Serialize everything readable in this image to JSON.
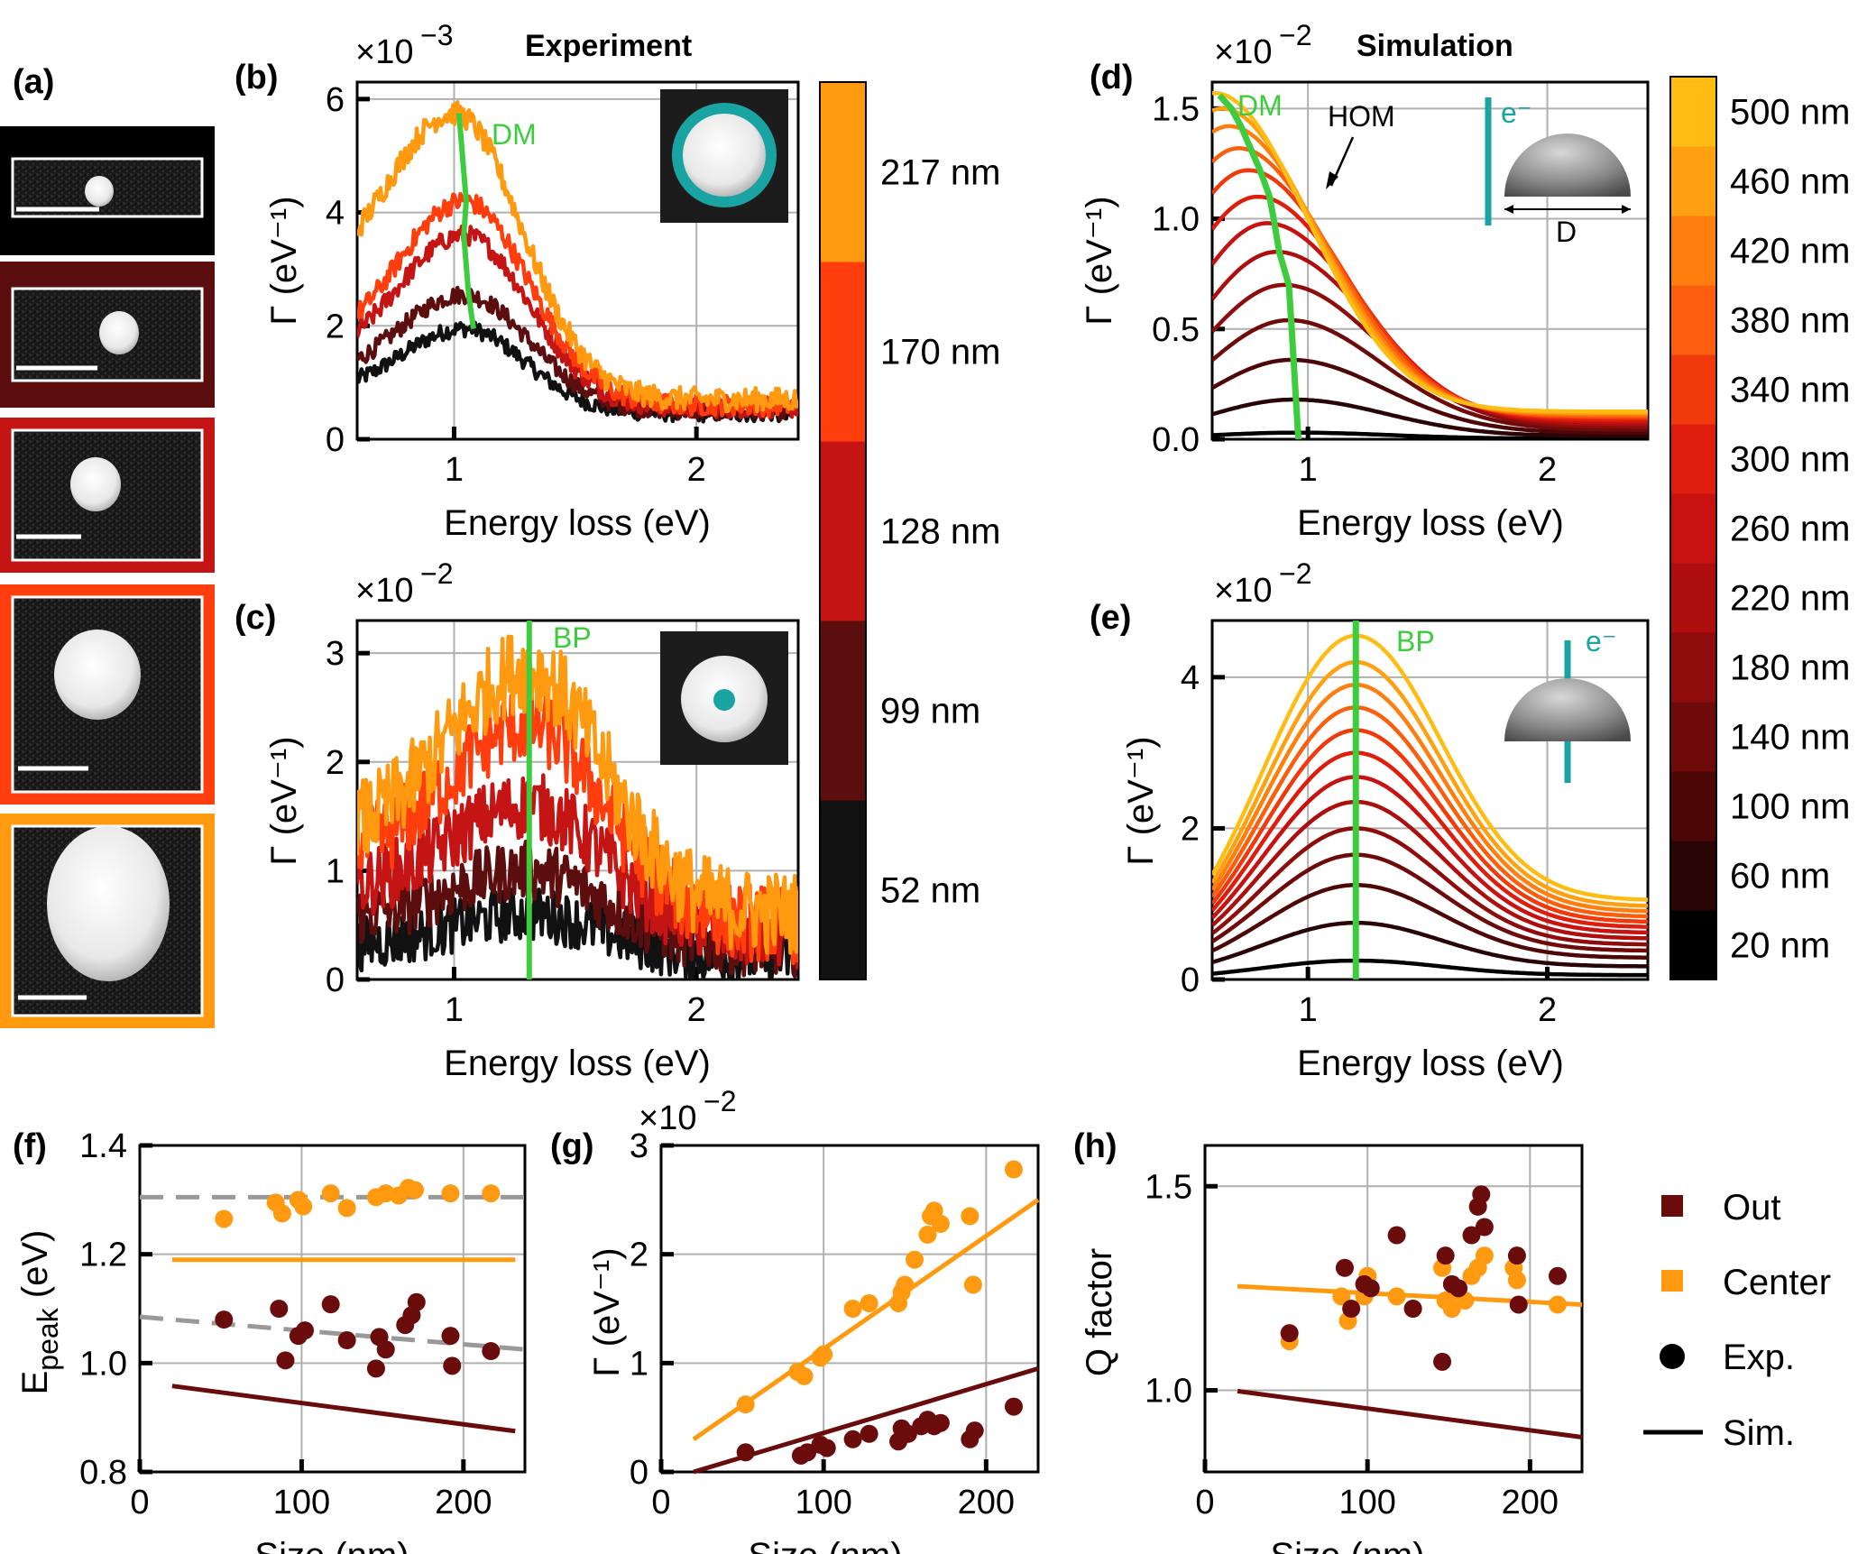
{
  "titles": {
    "experiment": "Experiment",
    "simulation": "Simulation"
  },
  "panel_labels": {
    "a": "(a)",
    "b": "(b)",
    "c": "(c)",
    "d": "(d)",
    "e": "(e)",
    "f": "(f)",
    "g": "(g)",
    "h": "(h)"
  },
  "labels": {
    "energy_loss": "Energy loss (eV)",
    "gamma": "Γ (eV⁻¹)",
    "size": "Size (nm)",
    "epeak": "E",
    "epeak_sub": "peak",
    "epeak_unit": " (eV)",
    "qfactor": "Q factor"
  },
  "annotations": {
    "dm": "DM",
    "bp": "BP",
    "hom": "HOM",
    "eminus": "e⁻",
    "diameter": "D"
  },
  "colorbars": {
    "experiment": [
      "52 nm",
      "99 nm",
      "128 nm",
      "170 nm",
      "217 nm"
    ],
    "simulation": [
      "20 nm",
      "60 nm",
      "100 nm",
      "140 nm",
      "180 nm",
      "220 nm",
      "260 nm",
      "300 nm",
      "340 nm",
      "380 nm",
      "420 nm",
      "460 nm",
      "500 nm"
    ]
  },
  "legend": {
    "out": "Out",
    "center": "Center",
    "exp": "Exp.",
    "sim": "Sim."
  },
  "colors": {
    "out": "#6b0c0c",
    "center": "#ff9a10",
    "green": "#3dcc3d",
    "teal": "#1aa3a3",
    "grid": "#b0b0b0",
    "exp_scale": [
      "#111111",
      "#5c0d0d",
      "#c41414",
      "#ff3d0d",
      "#ff9a10"
    ],
    "sim_scale": [
      "#000000",
      "#2a0505",
      "#4e0707",
      "#6e0a0a",
      "#8e0c0c",
      "#ad0e0e",
      "#c81111",
      "#df1d0d",
      "#f03a0c",
      "#fb5e0d",
      "#ff7e0e",
      "#ffa010",
      "#ffbd14"
    ]
  },
  "chart_data": [
    {
      "panel": "b",
      "type": "line",
      "title": "Experiment",
      "xlabel": "Energy loss (eV)",
      "ylabel": "Γ (eV⁻¹)",
      "y_multiplier": "×10⁻³",
      "xlim": [
        0.6,
        2.42
      ],
      "ylim": [
        0,
        6.3
      ],
      "xticks": [
        1,
        2
      ],
      "yticks": [
        0,
        2,
        4,
        6
      ],
      "series": [
        {
          "name": "52 nm",
          "peak_x": 1.04,
          "peak_y": 1.95,
          "base": 0.8,
          "tail": 0.45,
          "width": 0.36
        },
        {
          "name": "99 nm",
          "peak_x": 1.04,
          "peak_y": 2.55,
          "base": 1.0,
          "tail": 0.5,
          "width": 0.38
        },
        {
          "name": "128 nm",
          "peak_x": 1.04,
          "peak_y": 3.6,
          "base": 1.3,
          "tail": 0.55,
          "width": 0.38
        },
        {
          "name": "170 nm",
          "peak_x": 1.04,
          "peak_y": 4.2,
          "base": 1.5,
          "tail": 0.6,
          "width": 0.38
        },
        {
          "name": "217 nm",
          "peak_x": 1.0,
          "peak_y": 5.75,
          "base": 2.6,
          "tail": 0.7,
          "width": 0.39
        }
      ],
      "dm_trace": {
        "x": [
          1.02,
          1.05,
          1.04,
          1.06,
          1.08
        ],
        "y": [
          5.75,
          4.2,
          3.6,
          2.55,
          1.95
        ]
      }
    },
    {
      "panel": "c",
      "type": "line",
      "xlabel": "Energy loss (eV)",
      "ylabel": "Γ (eV⁻¹)",
      "y_multiplier": "×10⁻²",
      "xlim": [
        0.6,
        2.42
      ],
      "ylim": [
        0,
        3.3
      ],
      "xticks": [
        1,
        2
      ],
      "yticks": [
        0,
        1,
        2,
        3
      ],
      "series": [
        {
          "name": "52 nm",
          "peak_x": 1.3,
          "peak_y": 0.6,
          "base": 0.3,
          "tail": 0.2,
          "width": 0.45
        },
        {
          "name": "99 nm",
          "peak_x": 1.3,
          "peak_y": 1.0,
          "base": 0.55,
          "tail": 0.3,
          "width": 0.45
        },
        {
          "name": "128 nm",
          "peak_x": 1.3,
          "peak_y": 1.6,
          "base": 0.8,
          "tail": 0.4,
          "width": 0.45
        },
        {
          "name": "170 nm",
          "peak_x": 1.3,
          "peak_y": 2.35,
          "base": 1.1,
          "tail": 0.5,
          "width": 0.45
        },
        {
          "name": "217 nm",
          "peak_x": 1.3,
          "peak_y": 2.85,
          "base": 1.3,
          "tail": 0.6,
          "width": 0.45
        }
      ],
      "bp_line_x": 1.31
    },
    {
      "panel": "d",
      "type": "line",
      "title": "Simulation",
      "xlabel": "Energy loss (eV)",
      "ylabel": "Γ (eV⁻¹)",
      "y_multiplier": "×10⁻²",
      "xlim": [
        0.6,
        2.42
      ],
      "ylim": [
        0,
        1.62
      ],
      "xticks": [
        1,
        2
      ],
      "yticks": [
        0.0,
        0.5,
        1.0,
        1.5
      ],
      "series": [
        {
          "name": "20 nm",
          "peak_x": 0.95,
          "peak_y": 0.03
        },
        {
          "name": "60 nm",
          "peak_x": 0.94,
          "peak_y": 0.18
        },
        {
          "name": "100 nm",
          "peak_x": 0.93,
          "peak_y": 0.36
        },
        {
          "name": "140 nm",
          "peak_x": 0.92,
          "peak_y": 0.54
        },
        {
          "name": "180 nm",
          "peak_x": 0.9,
          "peak_y": 0.7
        },
        {
          "name": "220 nm",
          "peak_x": 0.87,
          "peak_y": 0.85
        },
        {
          "name": "260 nm",
          "peak_x": 0.83,
          "peak_y": 0.98
        },
        {
          "name": "300 nm",
          "peak_x": 0.79,
          "peak_y": 1.1
        },
        {
          "name": "340 nm",
          "peak_x": 0.75,
          "peak_y": 1.22
        },
        {
          "name": "380 nm",
          "peak_x": 0.71,
          "peak_y": 1.32
        },
        {
          "name": "420 nm",
          "peak_x": 0.67,
          "peak_y": 1.42
        },
        {
          "name": "460 nm",
          "peak_x": 0.64,
          "peak_y": 1.5
        },
        {
          "name": "500 nm",
          "peak_x": 0.61,
          "peak_y": 1.57
        }
      ],
      "dm_trace": {
        "x": [
          0.96,
          0.95,
          0.94,
          0.93,
          0.92,
          0.88,
          0.86,
          0.84,
          0.8,
          0.76,
          0.72,
          0.68,
          0.63
        ],
        "y": [
          0.0,
          0.18,
          0.36,
          0.54,
          0.7,
          0.85,
          0.98,
          1.1,
          1.22,
          1.32,
          1.42,
          1.5,
          1.56
        ]
      }
    },
    {
      "panel": "e",
      "type": "line",
      "xlabel": "Energy loss (eV)",
      "ylabel": "Γ (eV⁻¹)",
      "y_multiplier": "×10⁻²",
      "xlim": [
        0.6,
        2.42
      ],
      "ylim": [
        0,
        4.75
      ],
      "xticks": [
        1,
        2
      ],
      "yticks": [
        0,
        2,
        4
      ],
      "series": [
        {
          "name": "20 nm",
          "peak_y": 0.25
        },
        {
          "name": "60 nm",
          "peak_y": 0.75
        },
        {
          "name": "100 nm",
          "peak_y": 1.25
        },
        {
          "name": "140 nm",
          "peak_y": 1.65
        },
        {
          "name": "180 nm",
          "peak_y": 2.0
        },
        {
          "name": "220 nm",
          "peak_y": 2.35
        },
        {
          "name": "260 nm",
          "peak_y": 2.68
        },
        {
          "name": "300 nm",
          "peak_y": 3.0
        },
        {
          "name": "340 nm",
          "peak_y": 3.3
        },
        {
          "name": "380 nm",
          "peak_y": 3.6
        },
        {
          "name": "420 nm",
          "peak_y": 3.9
        },
        {
          "name": "460 nm",
          "peak_y": 4.2
        },
        {
          "name": "500 nm",
          "peak_y": 4.55
        }
      ],
      "peak_x": 1.2,
      "bp_line_x": 1.2
    },
    {
      "panel": "f",
      "type": "scatter",
      "xlabel": "Size (nm)",
      "ylabel": "E_peak (eV)",
      "xlim": [
        0,
        238
      ],
      "ylim": [
        0.8,
        1.4
      ],
      "xticks": [
        0,
        100,
        200
      ],
      "yticks": [
        0.8,
        1.0,
        1.2,
        1.4
      ],
      "center_points": [
        [
          52,
          1.265
        ],
        [
          84,
          1.295
        ],
        [
          88,
          1.275
        ],
        [
          98,
          1.3
        ],
        [
          101,
          1.288
        ],
        [
          118,
          1.312
        ],
        [
          128,
          1.285
        ],
        [
          146,
          1.305
        ],
        [
          152,
          1.312
        ],
        [
          160,
          1.308
        ],
        [
          166,
          1.322
        ],
        [
          170,
          1.318
        ],
        [
          192,
          1.312
        ],
        [
          217,
          1.312
        ]
      ],
      "out_points": [
        [
          52,
          1.08
        ],
        [
          86,
          1.1
        ],
        [
          90,
          1.005
        ],
        [
          98,
          1.05
        ],
        [
          102,
          1.06
        ],
        [
          118,
          1.108
        ],
        [
          128,
          1.042
        ],
        [
          146,
          0.99
        ],
        [
          148,
          1.048
        ],
        [
          152,
          1.025
        ],
        [
          164,
          1.07
        ],
        [
          168,
          1.088
        ],
        [
          171,
          1.112
        ],
        [
          192,
          1.05
        ],
        [
          193,
          0.995
        ],
        [
          217,
          1.022
        ]
      ],
      "center_fit": [
        [
          0,
          1.305
        ],
        [
          238,
          1.305
        ]
      ],
      "out_fit": [
        [
          0,
          1.085
        ],
        [
          238,
          1.025
        ]
      ],
      "center_sim": [
        [
          20,
          1.19
        ],
        [
          232,
          1.19
        ]
      ],
      "out_sim": [
        [
          20,
          0.958
        ],
        [
          232,
          0.875
        ]
      ]
    },
    {
      "panel": "g",
      "type": "scatter",
      "xlabel": "Size (nm)",
      "ylabel": "Γ (eV⁻¹)",
      "y_multiplier": "×10⁻²",
      "xlim": [
        0,
        232
      ],
      "ylim": [
        0,
        3.0
      ],
      "xticks": [
        0,
        100,
        200
      ],
      "yticks": [
        0,
        1,
        2,
        3
      ],
      "center_points": [
        [
          52,
          0.62
        ],
        [
          84,
          0.92
        ],
        [
          88,
          0.88
        ],
        [
          98,
          1.05
        ],
        [
          100,
          1.08
        ],
        [
          118,
          1.5
        ],
        [
          128,
          1.55
        ],
        [
          146,
          1.55
        ],
        [
          148,
          1.65
        ],
        [
          150,
          1.72
        ],
        [
          156,
          1.95
        ],
        [
          164,
          2.18
        ],
        [
          166,
          2.35
        ],
        [
          168,
          2.4
        ],
        [
          172,
          2.28
        ],
        [
          190,
          2.35
        ],
        [
          192,
          1.72
        ],
        [
          217,
          2.78
        ]
      ],
      "out_points": [
        [
          52,
          0.18
        ],
        [
          86,
          0.15
        ],
        [
          90,
          0.18
        ],
        [
          98,
          0.25
        ],
        [
          102,
          0.22
        ],
        [
          118,
          0.3
        ],
        [
          128,
          0.35
        ],
        [
          146,
          0.28
        ],
        [
          148,
          0.4
        ],
        [
          152,
          0.35
        ],
        [
          160,
          0.42
        ],
        [
          164,
          0.48
        ],
        [
          168,
          0.42
        ],
        [
          172,
          0.45
        ],
        [
          190,
          0.3
        ],
        [
          193,
          0.38
        ],
        [
          217,
          0.6
        ]
      ],
      "center_sim": [
        [
          20,
          0.3
        ],
        [
          232,
          2.5
        ]
      ],
      "out_sim": [
        [
          20,
          0.0
        ],
        [
          232,
          0.95
        ]
      ]
    },
    {
      "panel": "h",
      "type": "scatter",
      "xlabel": "Size (nm)",
      "ylabel": "Q factor",
      "xlim": [
        0,
        232
      ],
      "ylim": [
        0.8,
        1.6
      ],
      "xticks": [
        0,
        100,
        200
      ],
      "yticks": [
        1.0,
        1.5
      ],
      "center_points": [
        [
          52,
          1.12
        ],
        [
          84,
          1.23
        ],
        [
          88,
          1.17
        ],
        [
          98,
          1.23
        ],
        [
          100,
          1.28
        ],
        [
          118,
          1.23
        ],
        [
          128,
          1.2
        ],
        [
          146,
          1.3
        ],
        [
          148,
          1.22
        ],
        [
          152,
          1.2
        ],
        [
          160,
          1.22
        ],
        [
          164,
          1.28
        ],
        [
          168,
          1.3
        ],
        [
          172,
          1.33
        ],
        [
          190,
          1.3
        ],
        [
          192,
          1.27
        ],
        [
          217,
          1.21
        ]
      ],
      "out_points": [
        [
          52,
          1.14
        ],
        [
          86,
          1.3
        ],
        [
          90,
          1.2
        ],
        [
          98,
          1.26
        ],
        [
          102,
          1.25
        ],
        [
          118,
          1.38
        ],
        [
          128,
          1.2
        ],
        [
          146,
          1.07
        ],
        [
          148,
          1.33
        ],
        [
          152,
          1.26
        ],
        [
          156,
          1.25
        ],
        [
          164,
          1.38
        ],
        [
          168,
          1.45
        ],
        [
          170,
          1.48
        ],
        [
          172,
          1.4
        ],
        [
          192,
          1.33
        ],
        [
          193,
          1.21
        ],
        [
          217,
          1.28
        ]
      ],
      "center_fit": [
        [
          20,
          1.255
        ],
        [
          232,
          1.21
        ]
      ],
      "out_sim": [
        [
          20,
          0.998
        ],
        [
          232,
          0.885
        ]
      ]
    }
  ]
}
